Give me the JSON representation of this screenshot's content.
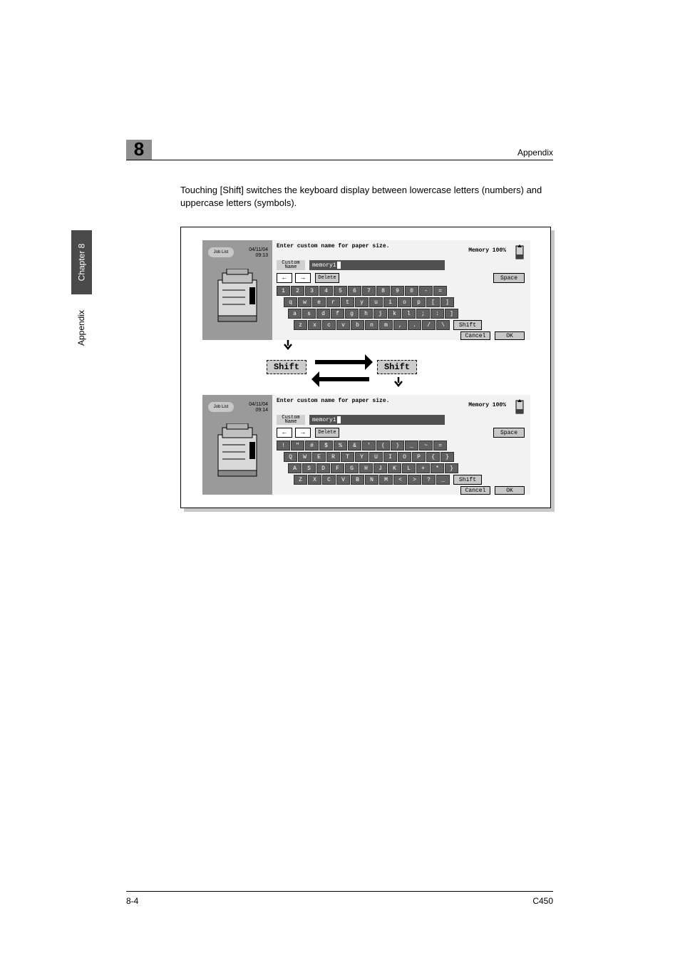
{
  "header": {
    "chapter_number": "8",
    "section_title": "Appendix"
  },
  "side_tab": {
    "chapter_label": "Chapter 8",
    "appendix_label": "Appendix"
  },
  "body": {
    "paragraph": "Touching [Shift] switches the keyboard display between lowercase letters (numbers) and uppercase letters (symbols)."
  },
  "figure": {
    "border_color": "#000000",
    "shadow_color": "#c8c8c8",
    "panel_top": {
      "job_list": "Job List",
      "timestamp_line1": "04/11/04",
      "timestamp_line2": "09:13",
      "title": "Enter custom name for paper size.",
      "memory": "Memory   100%",
      "custom_name_label": "Custom Name",
      "name_value": "memory1",
      "arrow_left": "←",
      "arrow_right": "→",
      "delete_label": "Delete",
      "space_label": "Space",
      "row1": [
        "1",
        "2",
        "3",
        "4",
        "5",
        "6",
        "7",
        "8",
        "9",
        "0",
        "-",
        "="
      ],
      "row2": [
        "q",
        "w",
        "e",
        "r",
        "t",
        "y",
        "u",
        "i",
        "o",
        "p",
        "[",
        "]"
      ],
      "row3": [
        "a",
        "s",
        "d",
        "f",
        "g",
        "h",
        "j",
        "k",
        "l",
        ";",
        ":",
        "]"
      ],
      "row4": [
        "z",
        "x",
        "c",
        "v",
        "b",
        "n",
        "m",
        ",",
        ".",
        "/",
        "\\"
      ],
      "shift_label": "Shift",
      "cancel_label": "Cancel",
      "ok_label": "OK"
    },
    "panel_bottom": {
      "job_list": "Job List",
      "timestamp_line1": "04/11/04",
      "timestamp_line2": "09:14",
      "title": "Enter custom name for paper size.",
      "memory": "Memory   100%",
      "custom_name_label": "Custom Name",
      "name_value": "memory1",
      "arrow_left": "←",
      "arrow_right": "→",
      "delete_label": "Delete",
      "space_label": "Space",
      "row1": [
        "!",
        "\"",
        "#",
        "$",
        "%",
        "&",
        "'",
        "(",
        ")",
        "_",
        "~",
        "="
      ],
      "row2": [
        "Q",
        "W",
        "E",
        "R",
        "T",
        "Y",
        "U",
        "I",
        "O",
        "P",
        "{",
        "}"
      ],
      "row3": [
        "A",
        "S",
        "D",
        "F",
        "G",
        "H",
        "J",
        "K",
        "L",
        "+",
        "*",
        "}"
      ],
      "row4": [
        "Z",
        "X",
        "C",
        "V",
        "B",
        "N",
        "M",
        "<",
        ">",
        "?",
        "_"
      ],
      "shift_label": "Shift",
      "cancel_label": "Cancel",
      "ok_label": "OK"
    },
    "toggle": {
      "shift_left": "Shift",
      "shift_right": "Shift"
    }
  },
  "footer": {
    "page_number": "8-4",
    "model": "C450"
  },
  "colors": {
    "chapter_box_bg": "#8f8f8f",
    "side_tab_bg": "#4a4a4a",
    "side_tab_fg": "#ffffff",
    "key_bg": "#606060",
    "key_fg": "#ffffff",
    "light_btn_bg": "#c8c8c8"
  }
}
